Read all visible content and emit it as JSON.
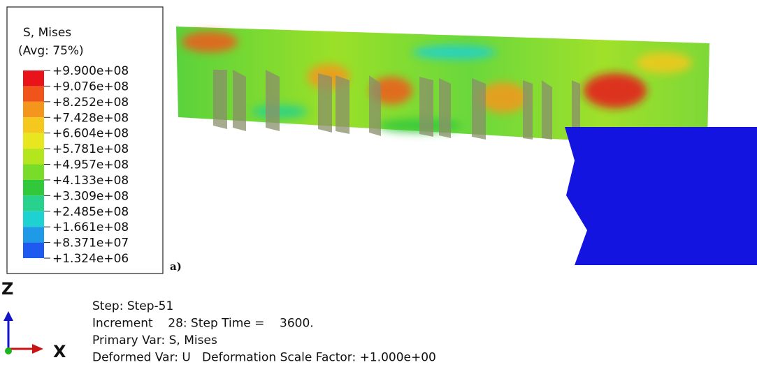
{
  "legend": {
    "title": "S, Mises",
    "subtitle": "(Avg: 75%)",
    "labels": [
      "+9.900e+08",
      "+9.076e+08",
      "+8.252e+08",
      "+7.428e+08",
      "+6.604e+08",
      "+5.781e+08",
      "+4.957e+08",
      "+4.133e+08",
      "+3.309e+08",
      "+2.485e+08",
      "+1.661e+08",
      "+8.371e+07",
      "+1.324e+06"
    ],
    "colors": [
      "#e8141a",
      "#f0541a",
      "#f5961c",
      "#f5c81e",
      "#e8e61e",
      "#b4e61e",
      "#78dc28",
      "#32c83c",
      "#28d28c",
      "#1ed2d2",
      "#1e9ae6",
      "#1e5af0",
      "#1414e6"
    ]
  },
  "panel_label": "a)",
  "triad": {
    "z": "Z",
    "x": "X"
  },
  "info": [
    "Step: Step-51",
    "Increment    28: Step Time =    3600.",
    "Primary Var: S, Mises",
    "Deformed Var: U   Deformation Scale Factor: +1.000e+00"
  ]
}
